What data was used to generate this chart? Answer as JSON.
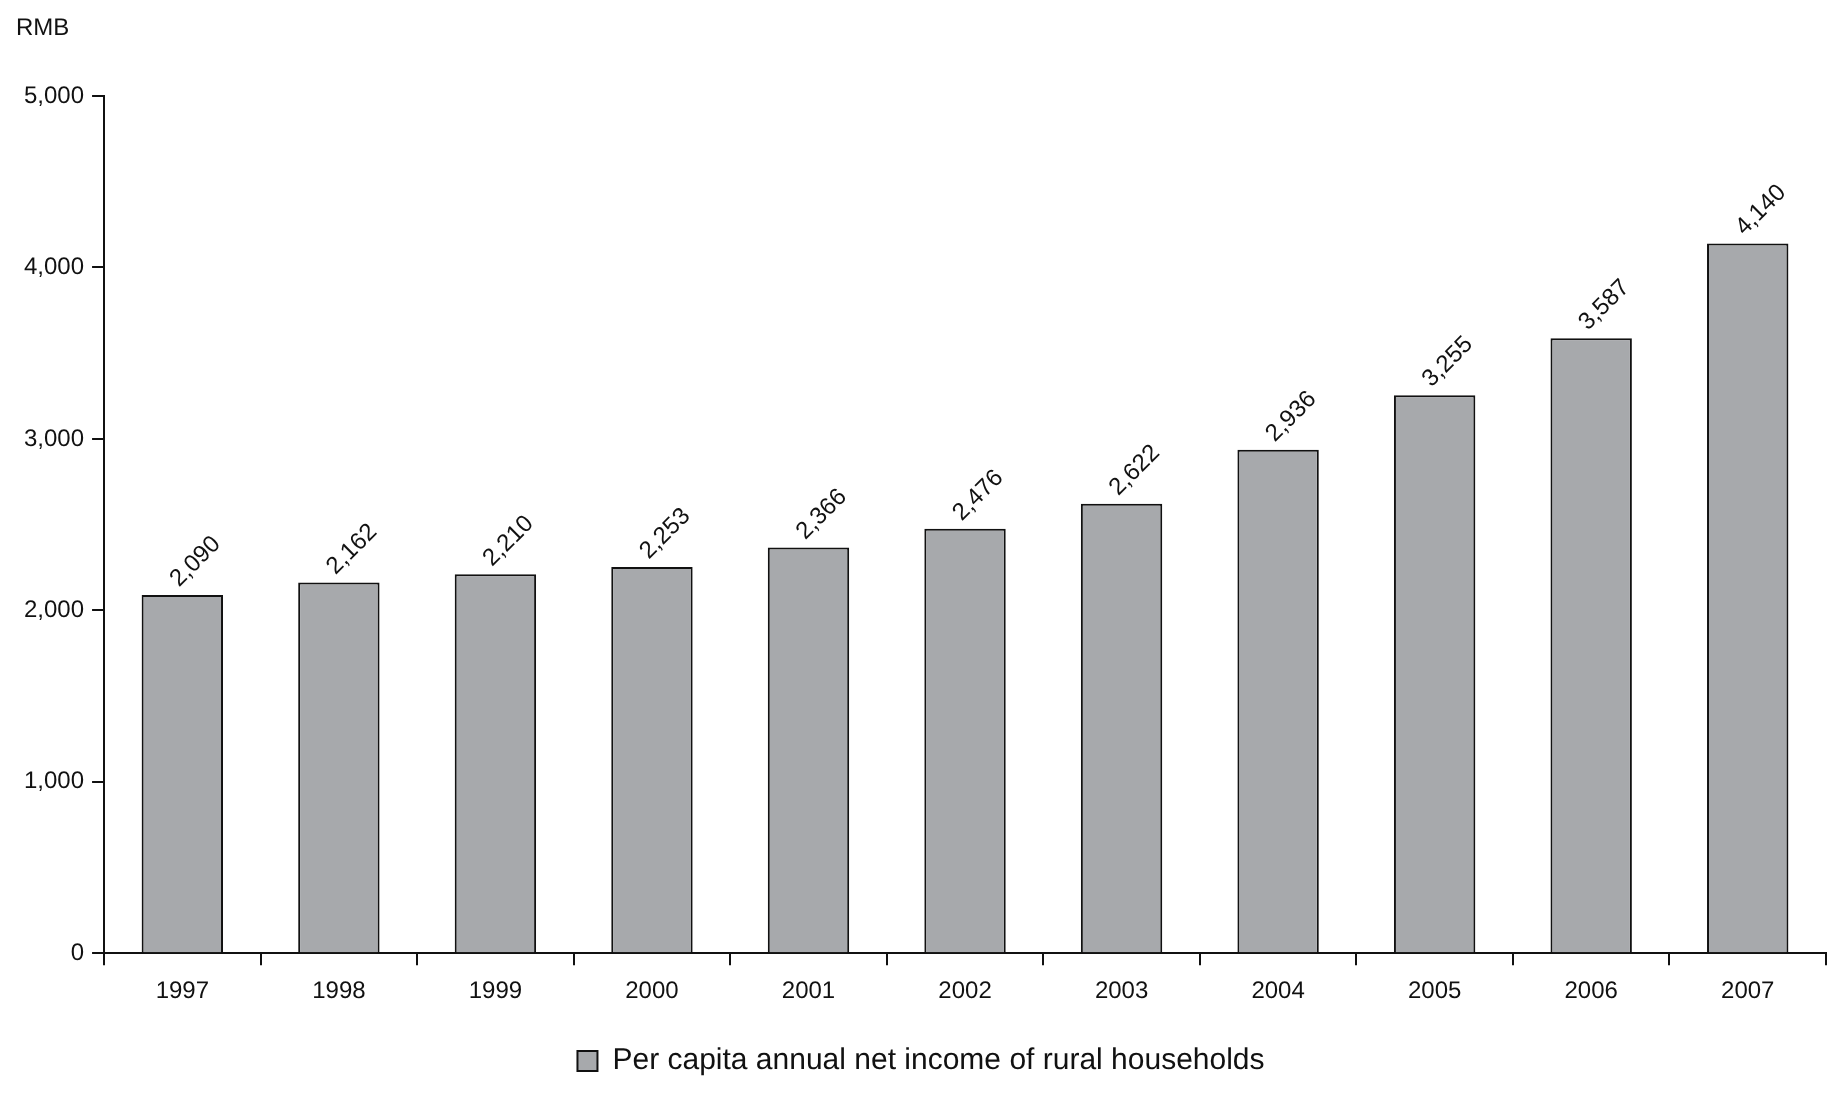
{
  "chart_data": {
    "type": "bar",
    "ylabel": "RMB",
    "categories": [
      "1997",
      "1998",
      "1999",
      "2000",
      "2001",
      "2002",
      "2003",
      "2004",
      "2005",
      "2006",
      "2007"
    ],
    "series": [
      {
        "name": "Per capita annual net income of rural households",
        "color": "#a7a9ac",
        "values": [
          2090,
          2162,
          2210,
          2253,
          2366,
          2476,
          2622,
          2936,
          3255,
          3587,
          4140
        ],
        "value_labels": [
          "2,090",
          "2,162",
          "2,210",
          "2,253",
          "2,366",
          "2,476",
          "2,622",
          "2,936",
          "3,255",
          "3,587",
          "4,140"
        ]
      }
    ],
    "ylim": [
      0,
      5000
    ],
    "yticks": [
      {
        "value": 0,
        "label": "0"
      },
      {
        "value": 1000,
        "label": "1,000"
      },
      {
        "value": 2000,
        "label": "2,000"
      },
      {
        "value": 3000,
        "label": "3,000"
      },
      {
        "value": 4000,
        "label": "4,000"
      },
      {
        "value": 5000,
        "label": "5,000"
      }
    ],
    "grid": false,
    "legend": "bottom"
  }
}
